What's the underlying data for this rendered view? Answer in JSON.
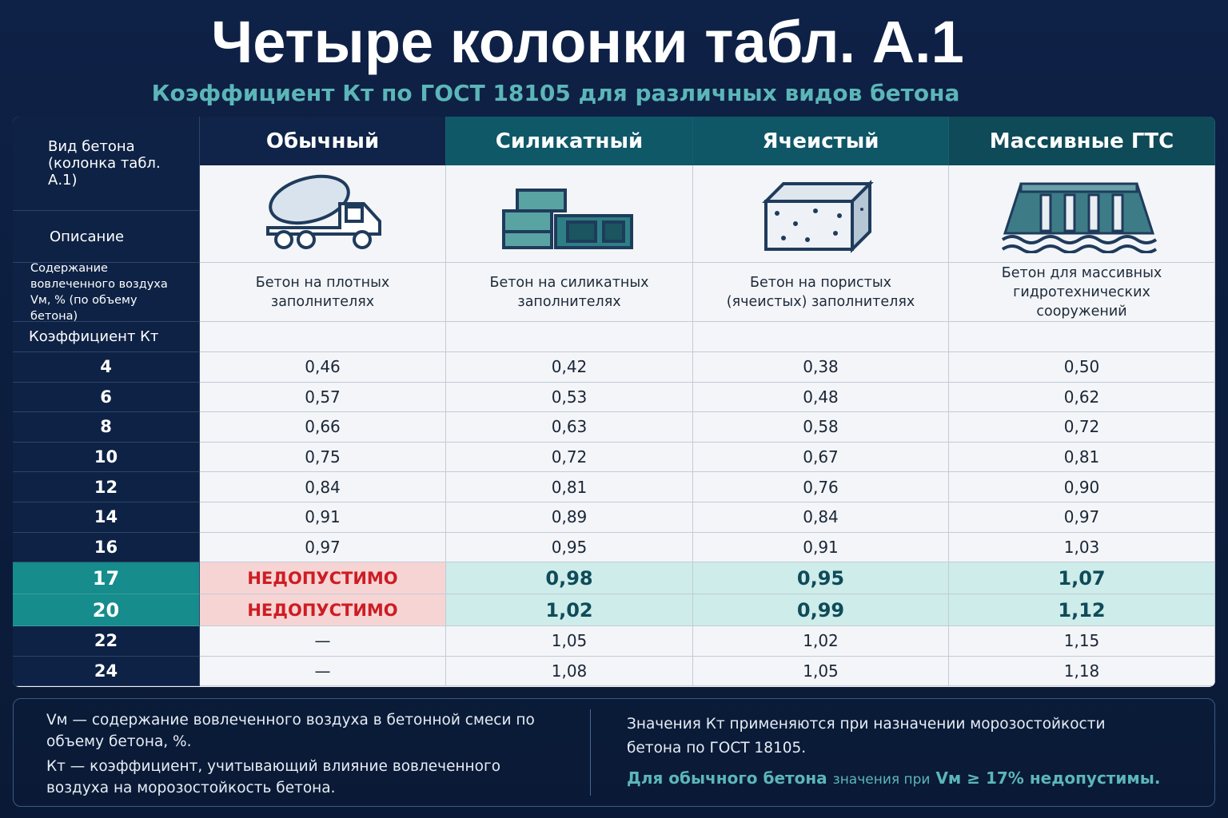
{
  "header": {
    "title": "Четыре колонки табл. А.1",
    "subtitle": "Коэффициент Кт по ГОСТ 18105 для различных видов бетона"
  },
  "table": {
    "corner": "Вид бетона (колонка табл. А.1)",
    "description_label": "Описание",
    "air_label": "Содержание вовлеченного воздуха Vм, % (по объему бетона)",
    "coef_label": "Коэффициент Кт",
    "columns": [
      "Обычный",
      "Силикатный",
      "Ячеистый",
      "Массивные ГТС"
    ],
    "descriptions": [
      "Бетон на плотных заполнителях",
      "Бетон на силикатных заполнителях",
      "Бетон на пористых (ячеистых) заполнителях",
      "Бетон для массивных гидротехнических сооружений"
    ],
    "rows": [
      {
        "air": "4",
        "values": [
          "0,46",
          "0,42",
          "0,38",
          "0,50"
        ]
      },
      {
        "air": "6",
        "values": [
          "0,57",
          "0,53",
          "0,48",
          "0,62"
        ]
      },
      {
        "air": "8",
        "values": [
          "0,66",
          "0,63",
          "0,58",
          "0,72"
        ]
      },
      {
        "air": "10",
        "values": [
          "0,75",
          "0,72",
          "0,67",
          "0,81"
        ]
      },
      {
        "air": "12",
        "values": [
          "0,84",
          "0,81",
          "0,76",
          "0,90"
        ]
      },
      {
        "air": "14",
        "values": [
          "0,91",
          "0,89",
          "0,84",
          "0,97"
        ]
      },
      {
        "air": "16",
        "values": [
          "0,97",
          "0,95",
          "0,91",
          "1,03"
        ]
      },
      {
        "air": "17",
        "values": [
          "НЕДОПУСТИМО",
          "0,98",
          "0,95",
          "1,07"
        ],
        "highlight": true
      },
      {
        "air": "20",
        "values": [
          "НЕДОПУСТИМО",
          "1,02",
          "0,99",
          "1,12"
        ],
        "highlight": true
      },
      {
        "air": "22",
        "values": [
          "—",
          "1,05",
          "1,02",
          "1,15"
        ]
      },
      {
        "air": "24",
        "values": [
          "—",
          "1,08",
          "1,05",
          "1,18"
        ]
      }
    ]
  },
  "notes": {
    "left": [
      "Vм — содержание вовлеченного воздуха в бетонной смеси по объему бетона, %.",
      "Кт — коэффициент, учитывающий влияние вовлеченного воздуха на морозостойкость бетона."
    ],
    "right_text": "Значения Кт применяются при назначении морозостойкости бетона по ГОСТ 18105.",
    "right_warning": [
      "Для обычного бетона",
      "значения при",
      "Vм ≥ 17%",
      "недопустимы."
    ]
  }
}
